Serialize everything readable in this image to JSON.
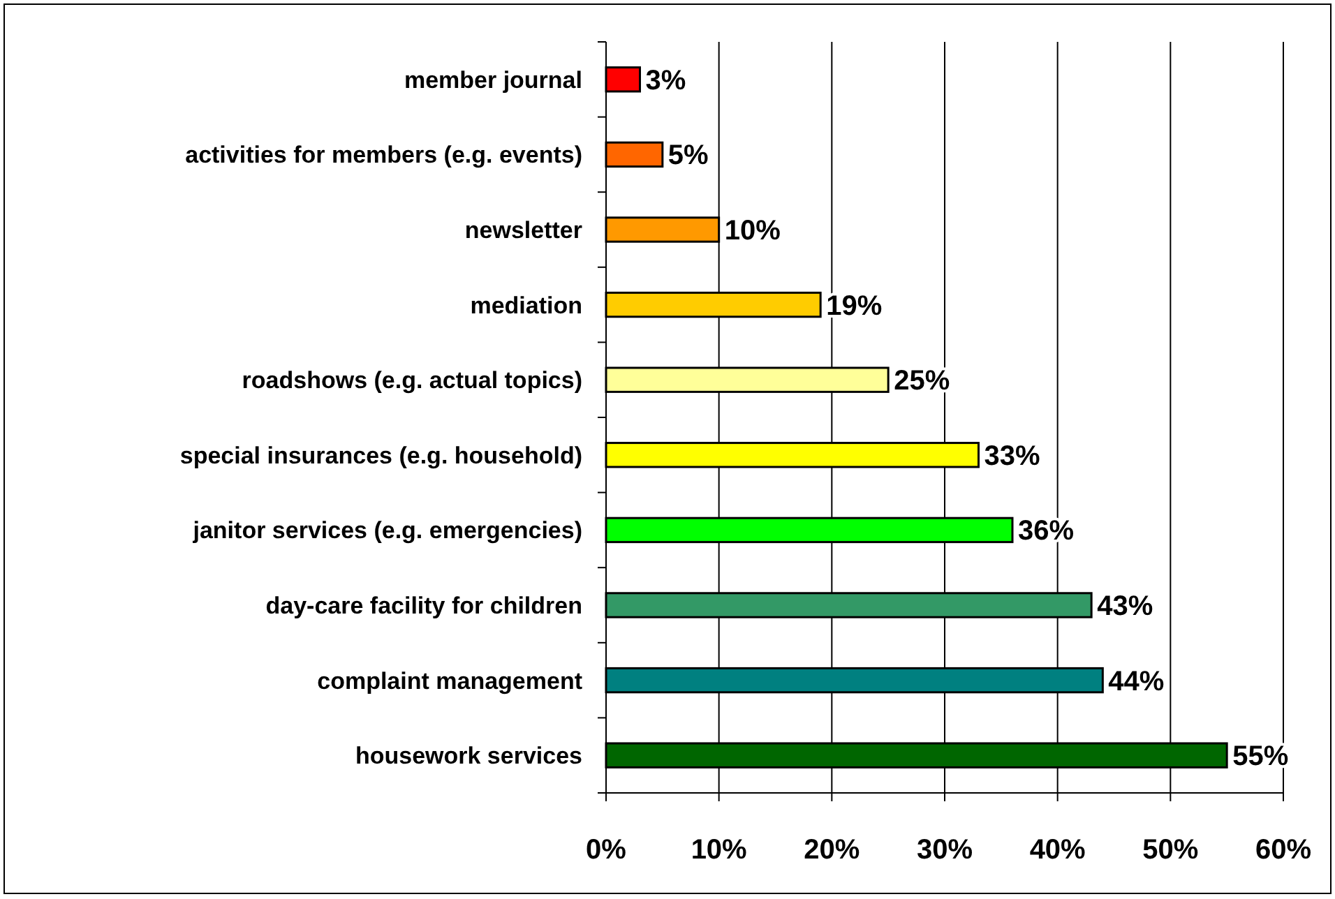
{
  "chart_data": {
    "type": "bar",
    "orientation": "horizontal",
    "categories": [
      "member journal",
      "activities for members (e.g. events)",
      "newsletter",
      "mediation",
      "roadshows (e.g. actual topics)",
      "special insurances (e.g. household)",
      "janitor services (e.g. emergencies)",
      "day-care facility for children",
      "complaint management",
      "housework services"
    ],
    "values": [
      3,
      5,
      10,
      19,
      25,
      33,
      36,
      43,
      44,
      55
    ],
    "colors": [
      "#ff0000",
      "#ff6600",
      "#ff9900",
      "#ffcc00",
      "#ffff99",
      "#ffff00",
      "#00ff00",
      "#339966",
      "#008080",
      "#006600"
    ],
    "value_labels": [
      "3%",
      "5%",
      "10%",
      "19%",
      "25%",
      "33%",
      "36%",
      "43%",
      "44%",
      "55%"
    ],
    "xlim": [
      0,
      60
    ],
    "xticks": [
      {
        "value": 0,
        "label": "0%"
      },
      {
        "value": 10,
        "label": "10%"
      },
      {
        "value": 20,
        "label": "20%"
      },
      {
        "value": 30,
        "label": "30%"
      },
      {
        "value": 40,
        "label": "40%"
      },
      {
        "value": 50,
        "label": "50%"
      },
      {
        "value": 60,
        "label": "60%"
      }
    ],
    "grid": "x"
  }
}
